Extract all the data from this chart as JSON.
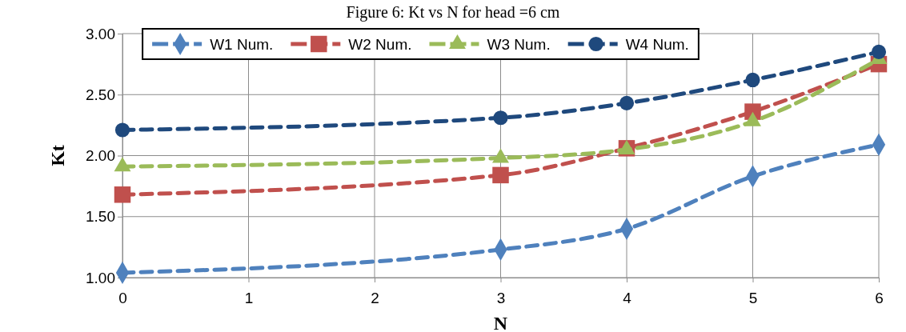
{
  "chart_data": {
    "type": "line",
    "title": "Figure 6: Kt vs N for head =6 cm",
    "xlabel": "N",
    "ylabel": "Kt",
    "x": [
      0,
      3,
      4,
      5,
      6
    ],
    "series": [
      {
        "name": "W1 Num.",
        "color": "#4f81bd",
        "marker": "diamond",
        "values": [
          1.04,
          1.23,
          1.4,
          1.83,
          2.09
        ]
      },
      {
        "name": "W2 Num.",
        "color": "#c0504d",
        "marker": "square",
        "values": [
          1.68,
          1.84,
          2.06,
          2.36,
          2.75
        ]
      },
      {
        "name": "W3 Num.",
        "color": "#9bbb59",
        "marker": "triangle",
        "values": [
          1.91,
          1.98,
          2.05,
          2.28,
          2.79
        ]
      },
      {
        "name": "W4 Num.",
        "color": "#1f497d",
        "marker": "circle",
        "values": [
          2.21,
          2.31,
          2.43,
          2.62,
          2.85
        ]
      }
    ],
    "xlim": [
      0,
      6
    ],
    "xticks": [
      0,
      1,
      2,
      3,
      4,
      5,
      6
    ],
    "ylim": [
      1,
      3
    ],
    "yticks": [
      {
        "value": 1,
        "label": "1.00"
      },
      {
        "value": 1.5,
        "label": "1.50"
      },
      {
        "value": 2,
        "label": "2.00"
      },
      {
        "value": 2.5,
        "label": "2.50"
      },
      {
        "value": 3,
        "label": "3.00"
      }
    ],
    "grid": true,
    "legend": "top",
    "line_style": "dashed"
  }
}
